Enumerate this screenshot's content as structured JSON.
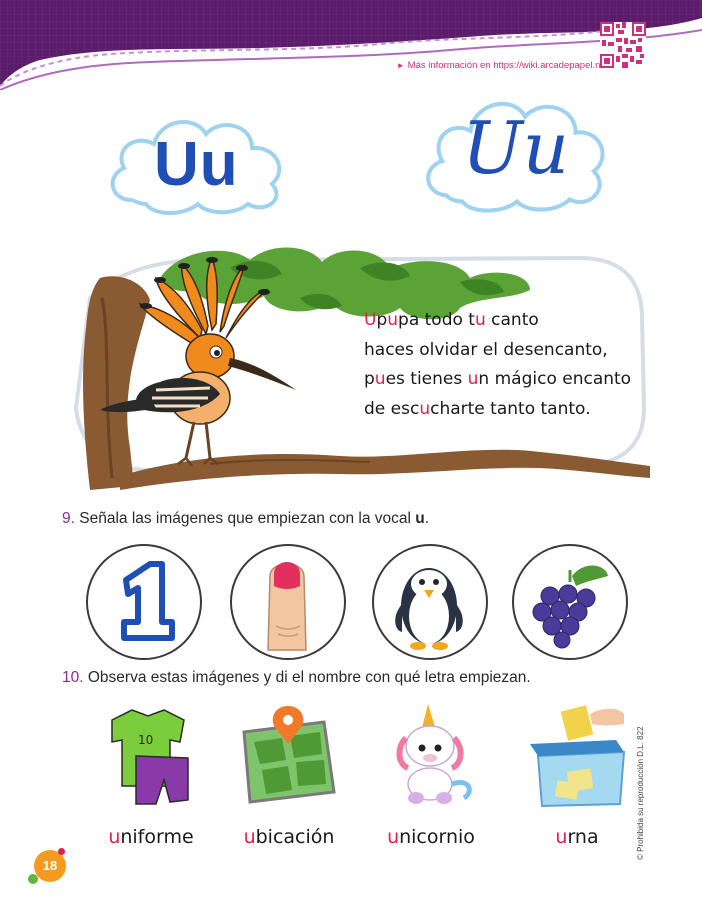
{
  "header": {
    "info_arrow": "►",
    "info_text": "Más información en https://wiki.arcadepapel.net/txt1-18"
  },
  "letters": {
    "print": "Uu",
    "cursive": "Uu"
  },
  "poem": {
    "lines": [
      [
        {
          "t": "U",
          "h": true
        },
        {
          "t": "p",
          "h": false
        },
        {
          "t": "u",
          "h": true
        },
        {
          "t": "pa todo t",
          "h": false
        },
        {
          "t": "u",
          "h": true
        },
        {
          "t": " canto",
          "h": false
        }
      ],
      [
        {
          "t": "haces olvidar el desencanto,",
          "h": false
        }
      ],
      [
        {
          "t": "p",
          "h": false
        },
        {
          "t": "u",
          "h": true
        },
        {
          "t": "es tienes ",
          "h": false
        },
        {
          "t": "u",
          "h": true
        },
        {
          "t": "n mágico encanto",
          "h": false
        }
      ],
      [
        {
          "t": "de esc",
          "h": false
        },
        {
          "t": "u",
          "h": true
        },
        {
          "t": "charte tanto tanto.",
          "h": false
        }
      ]
    ]
  },
  "q9": {
    "number": "9.",
    "text_before": " Señala las imágenes que empiezan con la vocal ",
    "bold": "u",
    "text_after": "."
  },
  "q10": {
    "number": "10.",
    "text": " Observa estas imágenes y di el nombre con qué letra empiezan."
  },
  "words": [
    {
      "first": "u",
      "rest": "niforme"
    },
    {
      "first": "u",
      "rest": "bicación"
    },
    {
      "first": "u",
      "rest": "nicornio"
    },
    {
      "first": "u",
      "rest": "rna"
    }
  ],
  "shirt_number": "10",
  "side_note": "© Prohibida su reproducción D.L. 822",
  "page_number": "18",
  "colors": {
    "accent_purple": "#8a2a98",
    "letter_blue": "#1f4fb5",
    "highlight_red": "#e2204f",
    "page_orange": "#f49a1e"
  }
}
